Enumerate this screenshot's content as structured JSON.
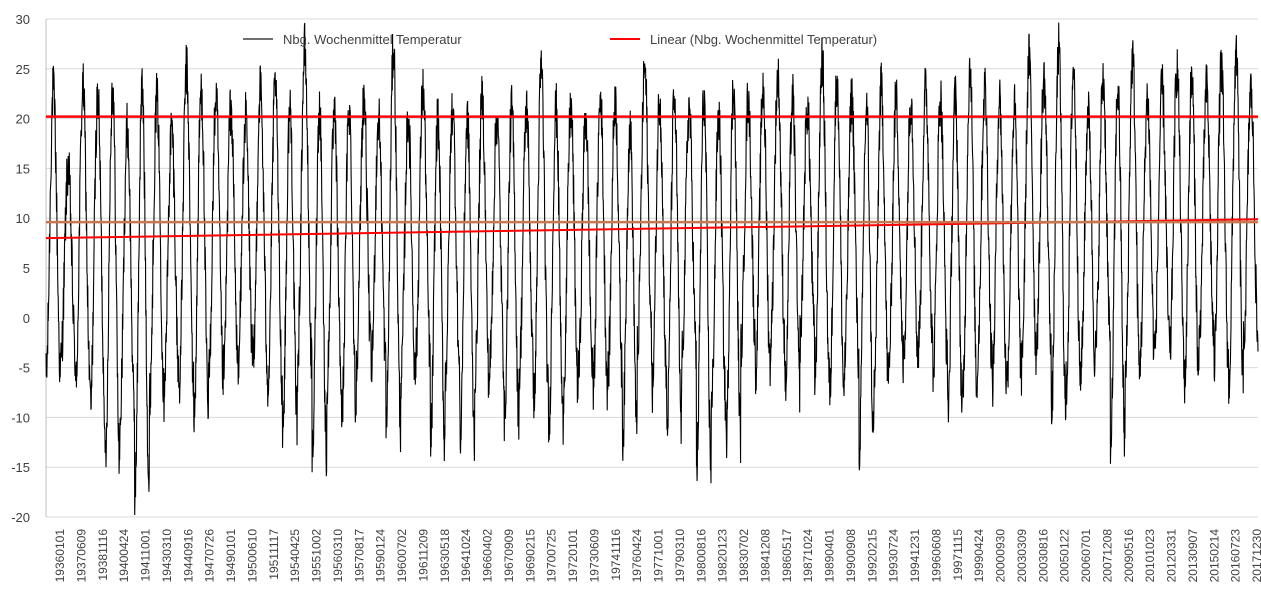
{
  "chart_data": {
    "type": "line",
    "title": "",
    "xlabel": "",
    "ylabel": "",
    "ylim": [
      -20,
      30
    ],
    "y_ticks": [
      -20,
      -15,
      -10,
      -5,
      0,
      5,
      10,
      15,
      20,
      25,
      30
    ],
    "grid": "horizontal",
    "legend_placement": "top",
    "x_tick_labels": [
      "19360101",
      "19370609",
      "19381116",
      "19400424",
      "19411001",
      "19430310",
      "19440916",
      "19470726",
      "19490101",
      "19500610",
      "19511117",
      "19540425",
      "19551002",
      "19560310",
      "19570817",
      "19590124",
      "19600702",
      "19611209",
      "19630518",
      "19641024",
      "19660402",
      "19670909",
      "19690215",
      "19700725",
      "19720101",
      "19730609",
      "19741116",
      "19760424",
      "19771001",
      "19790310",
      "19800816",
      "19820123",
      "19830702",
      "19841208",
      "19860517",
      "19871024",
      "19890401",
      "19900908",
      "19920215",
      "19930724",
      "19941231",
      "19960608",
      "19971115",
      "19990424",
      "20000930",
      "20030309",
      "20030816",
      "20050122",
      "20060701",
      "20071208",
      "20090516",
      "20101023",
      "20120331",
      "20130907",
      "20150214",
      "20160723",
      "20171230"
    ],
    "series": [
      {
        "name": "Nbg. Wochenmittel Temperatur",
        "color": "#000000",
        "kind": "weekly-seasonal",
        "start_year": 1936,
        "end_year": 2018,
        "annual_peaks": [
          23,
          15,
          23,
          22,
          23,
          19,
          23,
          22,
          19,
          25,
          23,
          22,
          21,
          20,
          23,
          23,
          21,
          27,
          21,
          20,
          21,
          22,
          20,
          27,
          20,
          23,
          20,
          21,
          20,
          22,
          20,
          21,
          21,
          25,
          21,
          21,
          20,
          22,
          22,
          19,
          25,
          22,
          22,
          21,
          22,
          20,
          23,
          22,
          23,
          24,
          22,
          21,
          26,
          24,
          22,
          21,
          23,
          22,
          22,
          23,
          22,
          22,
          25,
          23,
          22,
          21,
          26,
          24,
          27,
          25,
          21,
          24,
          23,
          26,
          22,
          23,
          25,
          24,
          23,
          25,
          26,
          23,
          26
        ],
        "annual_troughs": [
          -6,
          -4,
          -7,
          -9,
          -15,
          -10,
          -18,
          -8,
          -6,
          -7,
          -10,
          -6,
          -5,
          -4,
          -5,
          -7,
          -11,
          -5,
          -14,
          -7,
          -10,
          -4,
          -5,
          -11,
          -6,
          -4,
          -13,
          -6,
          -12,
          -7,
          -5,
          -10,
          -6,
          -8,
          -11,
          -7,
          -6,
          -7,
          -6,
          -12,
          -3,
          -7,
          -11,
          -4,
          -15,
          -9,
          -12,
          -3,
          -5,
          -3,
          -7,
          -2,
          -6,
          -8,
          -5,
          -13,
          -7,
          -5,
          -4,
          -3,
          -5,
          -9,
          -8,
          -4,
          -7,
          -6,
          -4,
          -2,
          -10,
          -7,
          -5,
          -3,
          -13,
          -6,
          -4,
          -2,
          -4,
          -7,
          -2,
          -5,
          -7,
          -3,
          -2
        ]
      },
      {
        "name": "Linear (Nbg. Wochenmittel Temperatur)",
        "color": "#ff0000",
        "type": "trendline",
        "x": [
          "19360101",
          "20180101"
        ],
        "y": [
          8.0,
          9.9
        ]
      }
    ],
    "reference_lines": [
      {
        "y": 20.2,
        "color": "#ff0000"
      },
      {
        "y": 9.6,
        "color": "#c87850"
      }
    ]
  }
}
